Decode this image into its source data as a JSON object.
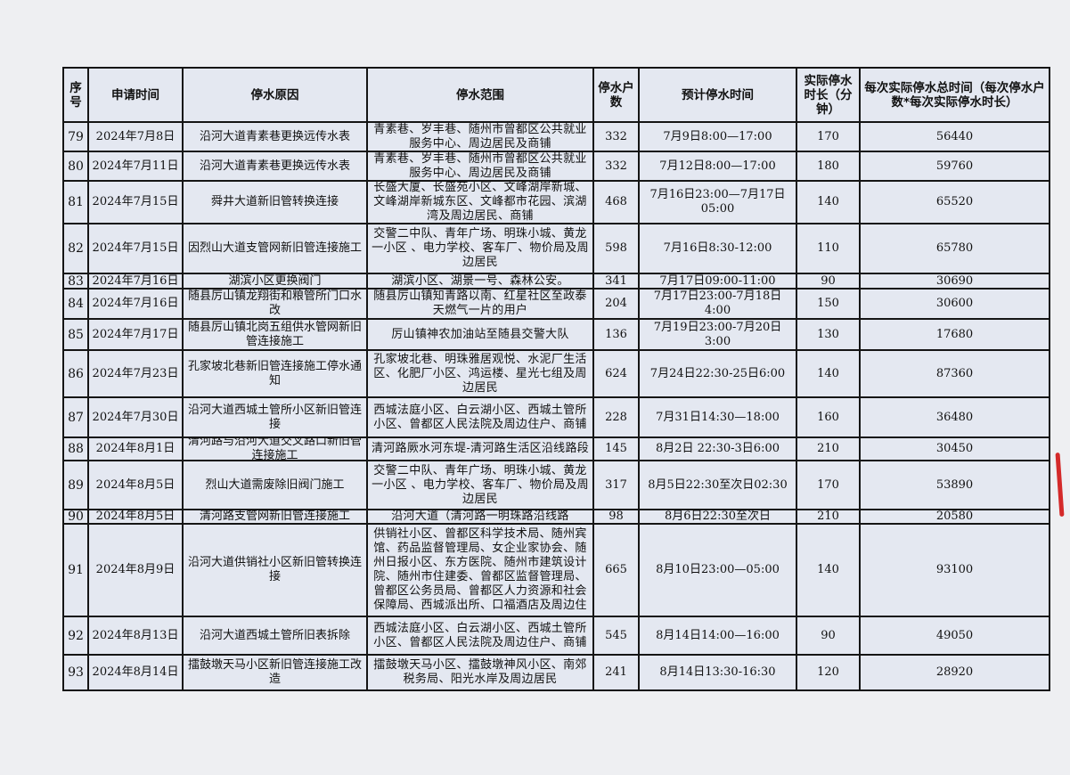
{
  "headers": [
    "序号",
    "申请时间",
    "停水原因",
    "停水范围",
    "停水户数",
    "预计停水时间",
    "实际停水时长（分钟）",
    "每次实际停水总时间（每次停水户数*每次实际停水时长）"
  ],
  "rows": [
    {
      "no": "79",
      "date": "2024年7月8日",
      "reason": "沿河大道青素巷更换远传水表",
      "scope": "青素巷、岁丰巷、随州市曾都区公共就业服务中心、周边居民及商铺",
      "households": "332",
      "planned": "7月9日8:00—17:00",
      "minutes": "170",
      "total": "56440"
    },
    {
      "no": "80",
      "date": "2024年7月11日",
      "reason": "沿河大道青素巷更换远传水表",
      "scope": "青素巷、岁丰巷、随州市曾都区公共就业服务中心、周边居民及商铺",
      "households": "332",
      "planned": "7月12日8:00—17:00",
      "minutes": "180",
      "total": "59760"
    },
    {
      "no": "81",
      "date": "2024年7月15日",
      "reason": "舜井大道新旧管转换连接",
      "scope": "长盛大厦、长盛苑小区、文峰湖岸新城、文峰湖岸新城东区、文峰都市花园、滨湖湾及周边居民、商铺",
      "households": "468",
      "planned": "7月16日23:00—7月17日05:00",
      "minutes": "140",
      "total": "65520"
    },
    {
      "no": "82",
      "date": "2024年7月15日",
      "reason": "因烈山大道支管网新旧管连接施工",
      "scope": "交警二中队、青年广场、明珠小城、黄龙一小区 、电力学校、客车厂、物价局及周边居民",
      "households": "598",
      "planned": "7月16日8:30-12:00",
      "minutes": "110",
      "total": "65780"
    },
    {
      "no": "83",
      "date": "2024年7月16日",
      "reason": "湖滨小区更换阀门",
      "scope": "湖滨小区、湖景一号、森林公安。",
      "households": "341",
      "planned": "7月17日09:00-11:00",
      "minutes": "90",
      "total": "30690"
    },
    {
      "no": "84",
      "date": "2024年7月16日",
      "reason": "随县厉山镇龙翔街和粮管所门口水改",
      "scope": "随县厉山镇知青路以南、红星社区至政泰天燃气一片的用户",
      "households": "204",
      "planned": "7月17日23:00-7月18日4:00",
      "minutes": "150",
      "total": "30600"
    },
    {
      "no": "85",
      "date": "2024年7月17日",
      "reason": "随县厉山镇北岗五组供水管网新旧管连接施工",
      "scope": "厉山镇神农加油站至随县交警大队",
      "households": "136",
      "planned": "7月19日23:00-7月20日3:00",
      "minutes": "130",
      "total": "17680"
    },
    {
      "no": "86",
      "date": "2024年7月23日",
      "reason": "孔家坡北巷新旧管连接施工停水通知",
      "scope": "孔家坡北巷、明珠雅居观悦、水泥厂生活区、化肥厂小区、鸿运楼、星光七组及周边居民",
      "households": "624",
      "planned": "7月24日22:30-25日6:00",
      "minutes": "140",
      "total": "87360"
    },
    {
      "no": "87",
      "date": "2024年7月30日",
      "reason": "沿河大道西城土管所小区新旧管连接",
      "scope": "西城法庭小区、白云湖小区、西城土管所小区、曾都区人民法院及周边住户、商铺",
      "households": "228",
      "planned": "7月31日14:30—18:00",
      "minutes": "160",
      "total": "36480"
    },
    {
      "no": "88",
      "date": "2024年8月1日",
      "reason": "清河路与沿河大道交叉路口新旧管连接施工",
      "scope": "清河路厥水河东堤-清河路生活区沿线路段",
      "households": "145",
      "planned": "8月2日 22:30-3日6:00",
      "minutes": "210",
      "total": "30450"
    },
    {
      "no": "89",
      "date": "2024年8月5日",
      "reason": "烈山大道需废除旧阀门施工",
      "scope": "交警二中队、青年广场、明珠小城、黄龙一小区 、电力学校、客车厂、物价局及周边居民",
      "households": "317",
      "planned": "8月5日22:30至次日02:30",
      "minutes": "170",
      "total": "53890"
    },
    {
      "no": "90",
      "date": "2024年8月5日",
      "reason": "清河路支管网新旧管连接施工",
      "scope": "沿河大道（清河路一明珠路沿线路",
      "households": "98",
      "planned": "8月6日22:30至次日",
      "minutes": "210",
      "total": "20580"
    },
    {
      "no": "91",
      "date": "2024年8月9日",
      "reason": "沿河大道供销社小区新旧管转换连接",
      "scope": "供销社小区、曾都区科学技术局、随州宾馆、药品监督管理局、女企业家协会、随州日报小区、东方医院、随州市建筑设计院、随州市住建委、曾都区监督管理局、曾都区公务员局、曾都区人力资源和社会保障局、西城派出所、口福酒店及周边住",
      "households": "665",
      "planned": "8月10日23:00—05:00",
      "minutes": "140",
      "total": "93100"
    },
    {
      "no": "92",
      "date": "2024年8月13日",
      "reason": "沿河大道西城土管所旧表拆除",
      "scope": "西城法庭小区、白云湖小区、西城土管所小区、曾都区人民法院及周边住户、商铺",
      "households": "545",
      "planned": "8月14日14:00—16:00",
      "minutes": "90",
      "total": "49050"
    },
    {
      "no": "93",
      "date": "2024年8月14日",
      "reason": "擂鼓墩天马小区新旧管连接施工改造",
      "scope": "擂鼓墩天马小区、擂鼓墩神风小区、南郊税务局、阳光水岸及周边居民",
      "households": "241",
      "planned": "8月14日13:30-16:30",
      "minutes": "120",
      "total": "28920"
    }
  ]
}
